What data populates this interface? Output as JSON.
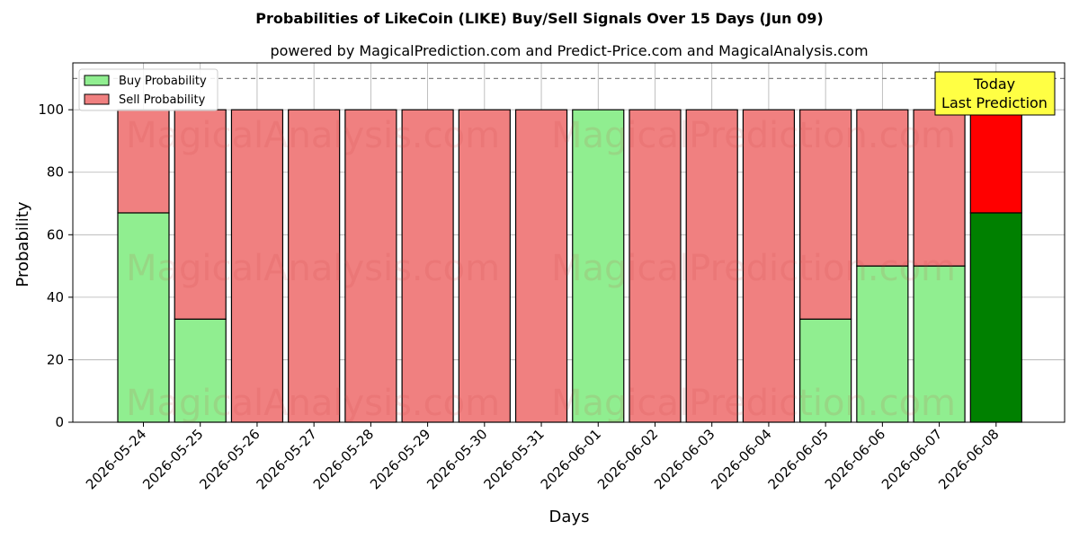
{
  "chart_data": {
    "type": "bar",
    "stacked": true,
    "title": "Probabilities of LikeCoin (LIKE) Buy/Sell Signals Over 15 Days (Jun 09)",
    "subtitle": "powered by MagicalPrediction.com and Predict-Price.com and MagicalAnalysis.com",
    "xlabel": "Days",
    "ylabel": "Probability",
    "ylim": [
      0,
      115
    ],
    "yticks": [
      0,
      20,
      40,
      60,
      80,
      100
    ],
    "grid": true,
    "reference_line": 110,
    "legend_position": "top-left",
    "categories": [
      "2026-05-24",
      "2026-05-25",
      "2026-05-26",
      "2026-05-27",
      "2026-05-28",
      "2026-05-29",
      "2026-05-30",
      "2026-05-31",
      "2026-06-01",
      "2026-06-02",
      "2026-06-03",
      "2026-06-04",
      "2026-06-05",
      "2026-06-06",
      "2026-06-07",
      "2026-06-08"
    ],
    "series": [
      {
        "name": "Buy Probability",
        "color": "#90ee90",
        "values": [
          67,
          33,
          0,
          0,
          0,
          0,
          0,
          0,
          100,
          0,
          0,
          0,
          33,
          50,
          50,
          67
        ]
      },
      {
        "name": "Sell Probability",
        "color": "#f08080",
        "values": [
          33,
          67,
          100,
          100,
          100,
          100,
          100,
          100,
          0,
          100,
          100,
          100,
          67,
          50,
          50,
          33
        ]
      }
    ],
    "highlight": {
      "index": 15,
      "buy_color": "#008000",
      "sell_color": "#ff0000"
    },
    "annotation": {
      "line1": "Today",
      "line2": "Last Prediction",
      "color": "#ffff44"
    },
    "watermarks": [
      "MagicalAnalysis.com",
      "MagicalPrediction.com"
    ]
  }
}
